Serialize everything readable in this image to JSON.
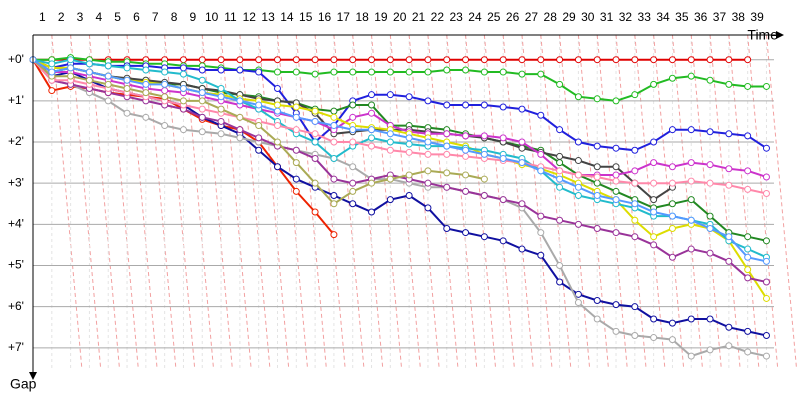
{
  "chart_data": {
    "type": "line",
    "x_label": "Time",
    "y_label": "Gap",
    "x": [
      0,
      1,
      2,
      3,
      4,
      5,
      6,
      7,
      8,
      9,
      10,
      11,
      12,
      13,
      14,
      15,
      16,
      17,
      18,
      19,
      20,
      21,
      22,
      23,
      24,
      25,
      26,
      27,
      28,
      29,
      30,
      31,
      32,
      33,
      34,
      35,
      36,
      37,
      38,
      39
    ],
    "xlim": [
      0,
      39.4
    ],
    "xticks": [
      1,
      2,
      3,
      4,
      5,
      6,
      7,
      8,
      9,
      10,
      11,
      12,
      13,
      14,
      15,
      16,
      17,
      18,
      19,
      20,
      21,
      22,
      23,
      24,
      25,
      26,
      27,
      28,
      29,
      30,
      31,
      32,
      33,
      34,
      35,
      36,
      37,
      38,
      39
    ],
    "ylim": [
      -0.6,
      8
    ],
    "yticks": [
      {
        "value": 0,
        "label": "+0'"
      },
      {
        "value": 1,
        "label": "+1'"
      },
      {
        "value": 2,
        "label": "+2'"
      },
      {
        "value": 3,
        "label": "+3'"
      },
      {
        "value": 4,
        "label": "+4'"
      },
      {
        "value": 5,
        "label": "+5'"
      },
      {
        "value": 6,
        "label": "+6'"
      },
      {
        "value": 7,
        "label": "+7'"
      }
    ],
    "y_inverted": true,
    "grid": true,
    "series": [
      {
        "color": "#e00000",
        "values": [
          0,
          0,
          0,
          0,
          0,
          0,
          0,
          0,
          0,
          0,
          0,
          0,
          0,
          0,
          0,
          0,
          0,
          0,
          0,
          0,
          0,
          0,
          0,
          0,
          0,
          0,
          0,
          0,
          0,
          0,
          0,
          0,
          0,
          0,
          0,
          0,
          0,
          0,
          0,
          null
        ]
      },
      {
        "color": "#22bb22",
        "values": [
          0,
          0,
          -0.05,
          0,
          0.05,
          0.05,
          0.1,
          0.1,
          0.15,
          0.15,
          0.2,
          0.25,
          0.25,
          0.3,
          0.3,
          0.35,
          0.3,
          0.3,
          0.3,
          0.3,
          0.3,
          0.3,
          0.25,
          0.25,
          0.3,
          0.3,
          0.35,
          0.35,
          0.6,
          0.9,
          0.95,
          1.0,
          0.85,
          0.6,
          0.45,
          0.4,
          0.5,
          0.6,
          0.65,
          0.65
        ]
      },
      {
        "color": "#2020dd",
        "values": [
          0,
          0.2,
          0.1,
          0.1,
          0.15,
          0.15,
          0.15,
          0.2,
          0.2,
          0.25,
          0.25,
          0.25,
          0.3,
          0.7,
          1.3,
          2.0,
          1.6,
          1.0,
          0.85,
          0.85,
          0.9,
          1.0,
          1.1,
          1.1,
          1.1,
          1.15,
          1.2,
          1.35,
          1.7,
          2.0,
          2.1,
          2.15,
          2.2,
          2.0,
          1.7,
          1.7,
          1.75,
          1.8,
          1.85,
          2.15
        ]
      },
      {
        "color": "#ee2200",
        "values": [
          0,
          0.75,
          0.65,
          0.7,
          0.8,
          0.85,
          0.9,
          0.95,
          1.2,
          1.45,
          1.6,
          1.7,
          2.0,
          2.6,
          3.2,
          3.7,
          4.25,
          null,
          null,
          null,
          null,
          null,
          null,
          null,
          null,
          null,
          null,
          null,
          null,
          null,
          null,
          null,
          null,
          null,
          null,
          null,
          null,
          null,
          null,
          null
        ]
      },
      {
        "color": "#1010a0",
        "values": [
          0,
          0.4,
          0.3,
          0.5,
          0.7,
          0.8,
          0.9,
          1.0,
          1.1,
          1.4,
          1.6,
          1.8,
          2.2,
          2.6,
          2.9,
          3.1,
          3.3,
          3.5,
          3.7,
          3.4,
          3.3,
          3.6,
          4.1,
          4.2,
          4.3,
          4.4,
          4.6,
          4.75,
          5.4,
          5.7,
          5.85,
          5.95,
          6.0,
          6.3,
          6.4,
          6.3,
          6.3,
          6.5,
          6.6,
          6.7
        ]
      },
      {
        "color": "#aaaaaa",
        "values": [
          0,
          0.5,
          0.6,
          0.8,
          1.0,
          1.3,
          1.4,
          1.6,
          1.7,
          1.75,
          1.8,
          1.9,
          2.0,
          2.1,
          2.2,
          2.3,
          2.4,
          2.6,
          2.9,
          2.9,
          3.0,
          3.1,
          3.1,
          3.2,
          3.3,
          3.4,
          3.6,
          4.2,
          5.0,
          5.9,
          6.3,
          6.6,
          6.7,
          6.75,
          6.8,
          7.2,
          7.05,
          6.95,
          7.1,
          7.2
        ]
      },
      {
        "color": "#228822",
        "values": [
          0,
          0.3,
          0.2,
          0.3,
          0.4,
          0.5,
          0.5,
          0.6,
          0.6,
          0.7,
          0.8,
          0.85,
          0.9,
          1.0,
          1.05,
          1.2,
          1.25,
          1.1,
          1.1,
          1.6,
          1.6,
          1.65,
          1.7,
          1.8,
          1.9,
          2.0,
          2.1,
          2.2,
          2.5,
          2.8,
          3.0,
          3.2,
          3.4,
          3.6,
          3.5,
          3.4,
          3.8,
          4.2,
          4.3,
          4.4
        ]
      },
      {
        "color": "#444444",
        "values": [
          0,
          0.2,
          0.2,
          0.3,
          0.4,
          0.45,
          0.5,
          0.55,
          0.6,
          0.7,
          0.75,
          0.85,
          0.95,
          1.0,
          1.05,
          1.3,
          1.8,
          1.75,
          1.7,
          1.7,
          1.7,
          1.75,
          1.8,
          1.85,
          1.9,
          2.0,
          2.15,
          2.25,
          2.35,
          2.45,
          2.6,
          2.6,
          3.0,
          3.4,
          3.1,
          null,
          null,
          null,
          null,
          null
        ]
      },
      {
        "color": "#cc33cc",
        "values": [
          0,
          0.3,
          0.3,
          0.4,
          0.5,
          0.6,
          0.7,
          0.75,
          0.8,
          0.9,
          1.0,
          1.1,
          1.2,
          1.3,
          1.4,
          1.5,
          1.7,
          1.4,
          1.3,
          1.6,
          1.75,
          1.8,
          1.8,
          1.85,
          1.85,
          1.9,
          2.0,
          2.3,
          2.7,
          2.8,
          2.8,
          2.8,
          2.7,
          2.5,
          2.6,
          2.5,
          2.55,
          2.65,
          2.7,
          2.85
        ]
      },
      {
        "color": "#dddd00",
        "values": [
          0,
          0.2,
          0.2,
          0.3,
          0.4,
          0.5,
          0.55,
          0.6,
          0.7,
          0.8,
          0.85,
          0.95,
          1.0,
          1.1,
          1.15,
          1.25,
          1.4,
          1.6,
          1.65,
          1.7,
          1.8,
          1.9,
          2.0,
          2.1,
          2.3,
          2.4,
          2.55,
          2.65,
          2.8,
          3.0,
          3.2,
          3.4,
          3.9,
          4.3,
          4.1,
          4.0,
          4.1,
          4.4,
          5.1,
          5.8
        ]
      },
      {
        "color": "#22bbcc",
        "values": [
          0,
          0.1,
          0.0,
          0.1,
          0.15,
          0.2,
          0.25,
          0.3,
          0.35,
          0.5,
          0.7,
          1.0,
          1.2,
          1.5,
          1.8,
          2.0,
          2.4,
          2.1,
          1.9,
          2.0,
          2.05,
          2.1,
          2.1,
          2.15,
          2.2,
          2.3,
          2.4,
          2.7,
          3.1,
          3.3,
          3.4,
          3.5,
          3.6,
          3.8,
          3.8,
          3.9,
          4.0,
          4.4,
          4.6,
          4.8
        ]
      },
      {
        "color": "#993399",
        "values": [
          0,
          0.5,
          0.6,
          0.7,
          0.8,
          0.9,
          1.0,
          1.1,
          1.2,
          1.4,
          1.5,
          1.7,
          1.9,
          2.1,
          2.2,
          2.4,
          2.9,
          3.0,
          2.9,
          2.8,
          2.9,
          3.0,
          3.1,
          3.2,
          3.3,
          3.4,
          3.5,
          3.8,
          3.9,
          4.0,
          4.1,
          4.2,
          4.3,
          4.5,
          4.8,
          4.6,
          4.7,
          4.9,
          5.3,
          5.4
        ]
      },
      {
        "color": "#ff88aa",
        "values": [
          0,
          0.5,
          0.5,
          0.6,
          0.7,
          0.8,
          0.9,
          1.0,
          1.1,
          1.2,
          1.3,
          1.4,
          1.5,
          1.6,
          1.7,
          1.8,
          2.0,
          2.0,
          2.1,
          2.2,
          2.25,
          2.3,
          2.3,
          2.35,
          2.4,
          2.45,
          2.5,
          2.6,
          2.7,
          2.8,
          2.85,
          2.95,
          3.0,
          3.0,
          3.0,
          2.95,
          3.0,
          3.05,
          3.15,
          3.25
        ]
      },
      {
        "color": "#aaaa55",
        "values": [
          0,
          0.4,
          0.4,
          0.5,
          0.6,
          0.7,
          0.8,
          0.9,
          1.0,
          1.0,
          1.2,
          1.4,
          1.6,
          2.0,
          2.5,
          3.0,
          3.5,
          3.2,
          3.0,
          2.9,
          2.8,
          2.7,
          2.75,
          2.8,
          2.9,
          null,
          null,
          null,
          null,
          null,
          null,
          null,
          null,
          null,
          null,
          null,
          null,
          null,
          null,
          null
        ]
      },
      {
        "color": "#5599ff",
        "values": [
          0,
          0.3,
          0.2,
          0.3,
          0.4,
          0.5,
          0.6,
          0.6,
          0.7,
          0.8,
          0.9,
          1.0,
          1.1,
          1.25,
          1.4,
          1.5,
          1.6,
          1.7,
          1.7,
          1.8,
          1.9,
          2.0,
          2.1,
          2.2,
          2.3,
          2.4,
          2.5,
          2.7,
          2.9,
          3.1,
          3.3,
          3.4,
          3.5,
          3.7,
          3.8,
          3.9,
          4.1,
          4.3,
          4.8,
          4.9
        ]
      }
    ]
  }
}
